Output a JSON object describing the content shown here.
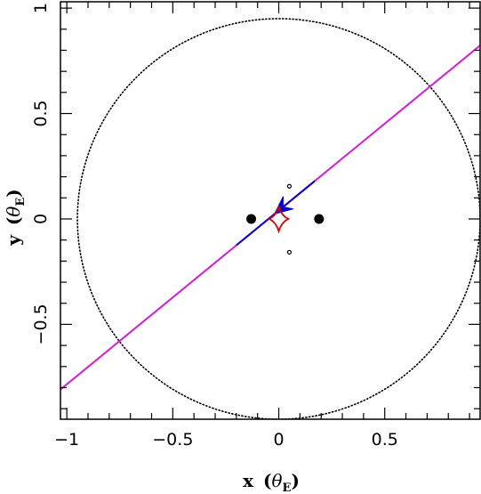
{
  "chart_data": {
    "type": "scatter",
    "title": "",
    "xlabel": {
      "text": "x",
      "open": "(",
      "symbol": "θ",
      "sub": "E",
      "close": ")"
    },
    "ylabel": {
      "text": "y",
      "open": "(",
      "symbol": "θ",
      "sub": "E",
      "close": ")"
    },
    "xlim": [
      -1.03,
      0.95
    ],
    "ylim": [
      -0.95,
      1.03
    ],
    "xticks": [
      {
        "value": -1,
        "label": "−1"
      },
      {
        "value": -0.5,
        "label": "−0.5"
      },
      {
        "value": 0,
        "label": "0"
      },
      {
        "value": 0.5,
        "label": "0.5"
      }
    ],
    "yticks": [
      {
        "value": -0.5,
        "label": "−0.5"
      },
      {
        "value": 0,
        "label": "0"
      },
      {
        "value": 0.5,
        "label": "0.5"
      },
      {
        "value": 1,
        "label": "1"
      }
    ],
    "einstein_ring": {
      "cx": 0,
      "cy": 0,
      "r": 0.95,
      "style": "dotted",
      "color": "#000000"
    },
    "lens_masses": [
      {
        "x": -0.13,
        "y": 0.0,
        "size": "large",
        "color": "#000000"
      },
      {
        "x": 0.19,
        "y": 0.0,
        "size": "large",
        "color": "#000000"
      }
    ],
    "images": [
      {
        "x": 0.05,
        "y": 0.155
      },
      {
        "x": 0.05,
        "y": -0.158
      }
    ],
    "caustic": {
      "color": "#dd0000",
      "center": [
        0.0,
        0.0
      ],
      "half_width_x": 0.045,
      "half_height_y": 0.058
    },
    "trajectory": {
      "color": "#d81bd8",
      "highlight_color": "#0000dd",
      "slope": 0.824,
      "intercept": 0.04,
      "highlight_x_range": [
        -0.2,
        0.17
      ],
      "arrow_at_x": -0.02,
      "direction": "left"
    }
  },
  "colors": {
    "axes": "#000000",
    "background": "#ffffff"
  }
}
